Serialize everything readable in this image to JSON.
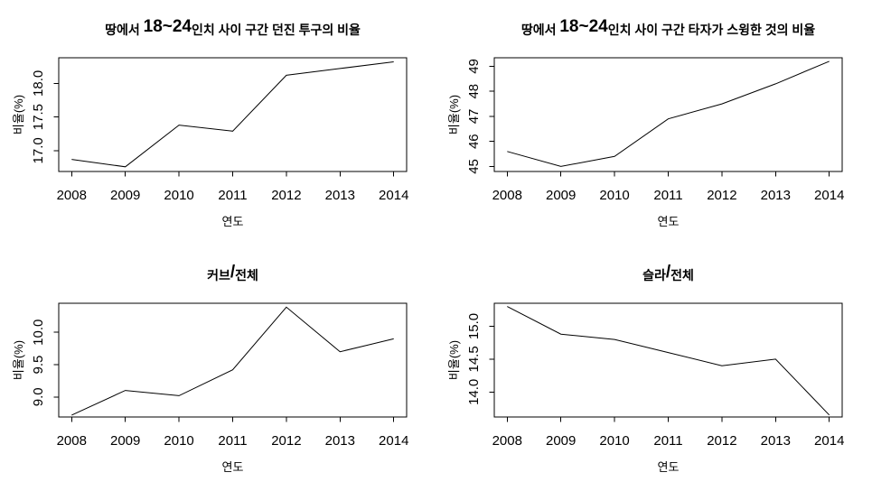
{
  "page": {
    "background": "#ffffff",
    "foreground": "#000000"
  },
  "chart_data": [
    {
      "position": "top-left",
      "type": "line",
      "title": "땅에서 18~24인치 사이 구간 던진 투구의 비율",
      "xlabel": "연도",
      "ylabel": "비율(%)",
      "x": [
        2008,
        2009,
        2010,
        2011,
        2012,
        2013,
        2014
      ],
      "values": [
        16.87,
        16.76,
        17.38,
        17.29,
        18.12,
        18.22,
        18.32
      ],
      "xticks": [
        2008,
        2009,
        2010,
        2011,
        2012,
        2013,
        2014
      ],
      "xtick_labels": [
        "2008",
        "2009",
        "2010",
        "2011",
        "2012",
        "2013",
        "2014"
      ],
      "yticks": [
        17.0,
        17.5,
        18.0
      ],
      "ytick_labels": [
        "17.0",
        "17.5",
        "18.0"
      ],
      "xlim": [
        2007.76,
        2014.24
      ],
      "ylim": [
        16.69,
        18.38
      ],
      "grid": false,
      "legend": null,
      "line_color": "#000000"
    },
    {
      "position": "top-right",
      "type": "line",
      "title": "땅에서 18~24인치 사이 구간 타자가 스윙한 것의 비율",
      "xlabel": "연도",
      "ylabel": "비율(%)",
      "x": [
        2008,
        2009,
        2010,
        2011,
        2012,
        2013,
        2014
      ],
      "values": [
        45.6,
        45.0,
        45.4,
        46.9,
        47.5,
        48.3,
        49.2
      ],
      "xticks": [
        2008,
        2009,
        2010,
        2011,
        2012,
        2013,
        2014
      ],
      "xtick_labels": [
        "2008",
        "2009",
        "2010",
        "2011",
        "2012",
        "2013",
        "2014"
      ],
      "yticks": [
        45,
        46,
        47,
        48,
        49
      ],
      "ytick_labels": [
        "45",
        "46",
        "47",
        "48",
        "49"
      ],
      "xlim": [
        2007.76,
        2014.24
      ],
      "ylim": [
        44.8,
        49.34
      ],
      "grid": false,
      "legend": null,
      "line_color": "#000000"
    },
    {
      "position": "bottom-left",
      "type": "line",
      "title": "커브/전체",
      "xlabel": "연도",
      "ylabel": "비율(%)",
      "x": [
        2008,
        2009,
        2010,
        2011,
        2012,
        2013,
        2014
      ],
      "values": [
        8.72,
        9.1,
        9.02,
        9.42,
        10.39,
        9.7,
        9.9
      ],
      "xticks": [
        2008,
        2009,
        2010,
        2011,
        2012,
        2013,
        2014
      ],
      "xtick_labels": [
        "2008",
        "2009",
        "2010",
        "2011",
        "2012",
        "2013",
        "2014"
      ],
      "yticks": [
        9.0,
        9.5,
        10.0
      ],
      "ytick_labels": [
        "9.0",
        "9.5",
        "10.0"
      ],
      "xlim": [
        2007.76,
        2014.24
      ],
      "ylim": [
        8.69,
        10.45
      ],
      "grid": false,
      "legend": null,
      "line_color": "#000000"
    },
    {
      "position": "bottom-right",
      "type": "line",
      "title": "슬라/전체",
      "xlabel": "연도",
      "ylabel": "비율(%)",
      "x": [
        2008,
        2009,
        2010,
        2011,
        2012,
        2013,
        2014
      ],
      "values": [
        15.3,
        14.88,
        14.8,
        14.6,
        14.4,
        14.5,
        13.65
      ],
      "xticks": [
        2008,
        2009,
        2010,
        2011,
        2012,
        2013,
        2014
      ],
      "xtick_labels": [
        "2008",
        "2009",
        "2010",
        "2011",
        "2012",
        "2013",
        "2014"
      ],
      "yticks": [
        14.0,
        14.5,
        15.0
      ],
      "ytick_labels": [
        "14.0",
        "14.5",
        "15.0"
      ],
      "xlim": [
        2007.76,
        2014.24
      ],
      "ylim": [
        13.62,
        15.35
      ],
      "grid": false,
      "legend": null,
      "line_color": "#000000"
    }
  ]
}
